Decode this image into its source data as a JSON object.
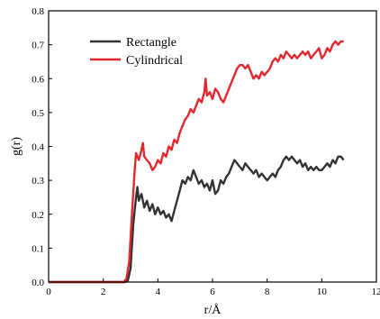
{
  "chart_data": {
    "type": "line",
    "xlabel": "r/Å",
    "ylabel": "g(r)",
    "xlim": [
      0,
      12
    ],
    "ylim": [
      0,
      0.8
    ],
    "xticks": [
      "0",
      "2",
      "4",
      "6",
      "8",
      "10",
      "12"
    ],
    "xtick_values": [
      0,
      2,
      4,
      6,
      8,
      10,
      12
    ],
    "yticks": [
      "0.0",
      "0.1",
      "0.2",
      "0.3",
      "0.4",
      "0.5",
      "0.6",
      "0.7",
      "0.8"
    ],
    "ytick_values": [
      0,
      0.1,
      0.2,
      0.3,
      0.4,
      0.5,
      0.6,
      0.7,
      0.8
    ],
    "legend_position": "top-left",
    "grid": false,
    "series": [
      {
        "name": "Rectangle",
        "color": "#333333",
        "points": [
          [
            0,
            0
          ],
          [
            2.8,
            0
          ],
          [
            2.9,
            0.005
          ],
          [
            3.0,
            0.04
          ],
          [
            3.1,
            0.17
          ],
          [
            3.2,
            0.25
          ],
          [
            3.25,
            0.28
          ],
          [
            3.3,
            0.24
          ],
          [
            3.4,
            0.26
          ],
          [
            3.5,
            0.22
          ],
          [
            3.6,
            0.24
          ],
          [
            3.7,
            0.21
          ],
          [
            3.8,
            0.23
          ],
          [
            3.9,
            0.2
          ],
          [
            4.0,
            0.22
          ],
          [
            4.1,
            0.2
          ],
          [
            4.2,
            0.21
          ],
          [
            4.3,
            0.19
          ],
          [
            4.4,
            0.2
          ],
          [
            4.5,
            0.18
          ],
          [
            4.6,
            0.21
          ],
          [
            4.7,
            0.24
          ],
          [
            4.8,
            0.27
          ],
          [
            4.9,
            0.3
          ],
          [
            5.0,
            0.29
          ],
          [
            5.1,
            0.31
          ],
          [
            5.2,
            0.3
          ],
          [
            5.3,
            0.33
          ],
          [
            5.4,
            0.31
          ],
          [
            5.5,
            0.29
          ],
          [
            5.6,
            0.3
          ],
          [
            5.7,
            0.28
          ],
          [
            5.8,
            0.29
          ],
          [
            5.9,
            0.27
          ],
          [
            6.0,
            0.3
          ],
          [
            6.1,
            0.26
          ],
          [
            6.2,
            0.27
          ],
          [
            6.3,
            0.3
          ],
          [
            6.4,
            0.29
          ],
          [
            6.5,
            0.31
          ],
          [
            6.6,
            0.32
          ],
          [
            6.7,
            0.34
          ],
          [
            6.8,
            0.36
          ],
          [
            6.9,
            0.35
          ],
          [
            7.0,
            0.34
          ],
          [
            7.1,
            0.33
          ],
          [
            7.2,
            0.35
          ],
          [
            7.3,
            0.34
          ],
          [
            7.4,
            0.33
          ],
          [
            7.5,
            0.32
          ],
          [
            7.6,
            0.33
          ],
          [
            7.7,
            0.31
          ],
          [
            7.8,
            0.32
          ],
          [
            7.9,
            0.31
          ],
          [
            8.0,
            0.3
          ],
          [
            8.1,
            0.31
          ],
          [
            8.2,
            0.32
          ],
          [
            8.3,
            0.31
          ],
          [
            8.4,
            0.33
          ],
          [
            8.5,
            0.34
          ],
          [
            8.6,
            0.36
          ],
          [
            8.7,
            0.37
          ],
          [
            8.8,
            0.36
          ],
          [
            8.9,
            0.37
          ],
          [
            9.0,
            0.36
          ],
          [
            9.1,
            0.35
          ],
          [
            9.2,
            0.36
          ],
          [
            9.3,
            0.34
          ],
          [
            9.4,
            0.35
          ],
          [
            9.5,
            0.33
          ],
          [
            9.6,
            0.34
          ],
          [
            9.7,
            0.33
          ],
          [
            9.8,
            0.34
          ],
          [
            9.9,
            0.33
          ],
          [
            10.0,
            0.33
          ],
          [
            10.1,
            0.34
          ],
          [
            10.2,
            0.35
          ],
          [
            10.3,
            0.34
          ],
          [
            10.4,
            0.36
          ],
          [
            10.5,
            0.35
          ],
          [
            10.6,
            0.37
          ],
          [
            10.7,
            0.37
          ],
          [
            10.8,
            0.36
          ]
        ]
      },
      {
        "name": "Cylindrical",
        "color": "#e0282e",
        "points": [
          [
            0,
            0
          ],
          [
            2.75,
            0
          ],
          [
            2.85,
            0.01
          ],
          [
            2.95,
            0.06
          ],
          [
            3.05,
            0.2
          ],
          [
            3.15,
            0.33
          ],
          [
            3.2,
            0.38
          ],
          [
            3.3,
            0.36
          ],
          [
            3.4,
            0.39
          ],
          [
            3.45,
            0.41
          ],
          [
            3.5,
            0.37
          ],
          [
            3.6,
            0.36
          ],
          [
            3.7,
            0.35
          ],
          [
            3.8,
            0.33
          ],
          [
            3.9,
            0.34
          ],
          [
            4.0,
            0.36
          ],
          [
            4.1,
            0.35
          ],
          [
            4.2,
            0.38
          ],
          [
            4.3,
            0.37
          ],
          [
            4.4,
            0.4
          ],
          [
            4.5,
            0.39
          ],
          [
            4.6,
            0.42
          ],
          [
            4.7,
            0.41
          ],
          [
            4.8,
            0.44
          ],
          [
            4.9,
            0.46
          ],
          [
            5.0,
            0.48
          ],
          [
            5.1,
            0.49
          ],
          [
            5.2,
            0.51
          ],
          [
            5.3,
            0.5
          ],
          [
            5.4,
            0.52
          ],
          [
            5.5,
            0.54
          ],
          [
            5.6,
            0.53
          ],
          [
            5.7,
            0.56
          ],
          [
            5.75,
            0.6
          ],
          [
            5.8,
            0.55
          ],
          [
            5.9,
            0.56
          ],
          [
            6.0,
            0.54
          ],
          [
            6.1,
            0.57
          ],
          [
            6.2,
            0.56
          ],
          [
            6.3,
            0.54
          ],
          [
            6.4,
            0.53
          ],
          [
            6.5,
            0.55
          ],
          [
            6.6,
            0.57
          ],
          [
            6.7,
            0.59
          ],
          [
            6.8,
            0.61
          ],
          [
            6.9,
            0.63
          ],
          [
            7.0,
            0.64
          ],
          [
            7.1,
            0.64
          ],
          [
            7.2,
            0.63
          ],
          [
            7.3,
            0.64
          ],
          [
            7.4,
            0.62
          ],
          [
            7.5,
            0.6
          ],
          [
            7.6,
            0.61
          ],
          [
            7.7,
            0.6
          ],
          [
            7.8,
            0.62
          ],
          [
            7.9,
            0.61
          ],
          [
            8.0,
            0.62
          ],
          [
            8.1,
            0.63
          ],
          [
            8.2,
            0.65
          ],
          [
            8.3,
            0.66
          ],
          [
            8.4,
            0.65
          ],
          [
            8.5,
            0.67
          ],
          [
            8.6,
            0.66
          ],
          [
            8.7,
            0.68
          ],
          [
            8.8,
            0.67
          ],
          [
            8.9,
            0.66
          ],
          [
            9.0,
            0.67
          ],
          [
            9.1,
            0.66
          ],
          [
            9.2,
            0.67
          ],
          [
            9.3,
            0.68
          ],
          [
            9.4,
            0.67
          ],
          [
            9.5,
            0.68
          ],
          [
            9.6,
            0.66
          ],
          [
            9.7,
            0.67
          ],
          [
            9.8,
            0.68
          ],
          [
            9.9,
            0.69
          ],
          [
            10.0,
            0.66
          ],
          [
            10.1,
            0.67
          ],
          [
            10.2,
            0.69
          ],
          [
            10.3,
            0.68
          ],
          [
            10.4,
            0.7
          ],
          [
            10.5,
            0.71
          ],
          [
            10.6,
            0.7
          ],
          [
            10.7,
            0.71
          ],
          [
            10.8,
            0.71
          ]
        ]
      }
    ]
  }
}
